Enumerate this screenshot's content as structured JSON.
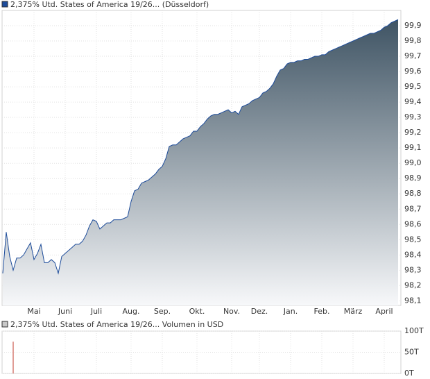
{
  "chart_data": [
    {
      "type": "area",
      "series": [
        {
          "name": "2,375% Utd. States of America 19/26... (Düsseldorf)",
          "color": "#1c4b9a",
          "values": [
            98.28,
            98.55,
            98.39,
            98.3,
            98.38,
            98.38,
            98.4,
            98.44,
            98.48,
            98.37,
            98.41,
            98.47,
            98.35,
            98.35,
            98.37,
            98.35,
            98.28,
            98.39,
            98.41,
            98.43,
            98.45,
            98.47,
            98.47,
            98.49,
            98.53,
            98.59,
            98.63,
            98.62,
            98.57,
            98.59,
            98.61,
            98.61,
            98.63,
            98.63,
            98.63,
            98.64,
            98.65,
            98.75,
            98.82,
            98.83,
            98.87,
            98.88,
            98.89,
            98.91,
            98.93,
            98.96,
            98.98,
            99.03,
            99.11,
            99.12,
            99.12,
            99.14,
            99.16,
            99.17,
            99.18,
            99.21,
            99.21,
            99.24,
            99.26,
            99.29,
            99.31,
            99.32,
            99.32,
            99.33,
            99.34,
            99.35,
            99.33,
            99.34,
            99.32,
            99.37,
            99.38,
            99.39,
            99.41,
            99.42,
            99.43,
            99.46,
            99.47,
            99.49,
            99.52,
            99.57,
            99.61,
            99.62,
            99.65,
            99.66,
            99.66,
            99.67,
            99.67,
            99.68,
            99.68,
            99.69,
            99.7,
            99.7,
            99.71,
            99.71,
            99.73,
            99.74,
            99.75,
            99.76,
            99.77,
            99.78,
            99.79,
            99.8,
            99.81,
            99.82,
            99.83,
            99.84,
            99.85,
            99.85,
            99.86,
            99.87,
            99.89,
            99.9,
            99.92,
            99.93,
            99.94
          ]
        }
      ],
      "categories": [
        null,
        null,
        null,
        null,
        null,
        null,
        null,
        null,
        null,
        "Mai",
        null,
        null,
        null,
        null,
        null,
        null,
        null,
        null,
        "Juni",
        null,
        null,
        null,
        null,
        null,
        null,
        null,
        null,
        "Juli",
        null,
        null,
        null,
        null,
        null,
        null,
        null,
        null,
        null,
        "Aug.",
        null,
        null,
        null,
        null,
        null,
        null,
        null,
        null,
        "Sep.",
        null,
        null,
        null,
        null,
        null,
        null,
        null,
        null,
        null,
        "Okt.",
        null,
        null,
        null,
        null,
        null,
        null,
        null,
        null,
        null,
        "Nov.",
        null,
        null,
        null,
        null,
        null,
        null,
        null,
        "Dez.",
        null,
        null,
        null,
        null,
        null,
        null,
        null,
        null,
        "Jan.",
        null,
        null,
        null,
        null,
        null,
        null,
        null,
        null,
        "Feb.",
        null,
        null,
        null,
        null,
        null,
        null,
        null,
        null,
        "März",
        null,
        null,
        null,
        null,
        null,
        null,
        null,
        null,
        "April",
        null,
        null,
        null,
        null
      ],
      "ylim": [
        98.07,
        100.0
      ],
      "yticks": [
        {
          "value": 98.1,
          "label": "98,1"
        },
        {
          "value": 98.2,
          "label": "98,2"
        },
        {
          "value": 98.3,
          "label": "98,3"
        },
        {
          "value": 98.4,
          "label": "98,4"
        },
        {
          "value": 98.5,
          "label": "98,5"
        },
        {
          "value": 98.6,
          "label": "98,6"
        },
        {
          "value": 98.7,
          "label": "98,7"
        },
        {
          "value": 98.8,
          "label": "98,8"
        },
        {
          "value": 98.9,
          "label": "98,9"
        },
        {
          "value": 99.0,
          "label": "99,0"
        },
        {
          "value": 99.1,
          "label": "99,1"
        },
        {
          "value": 99.2,
          "label": "99,2"
        },
        {
          "value": 99.3,
          "label": "99,3"
        },
        {
          "value": 99.4,
          "label": "99,4"
        },
        {
          "value": 99.5,
          "label": "99,5"
        },
        {
          "value": 99.6,
          "label": "99,6"
        },
        {
          "value": 99.7,
          "label": "99,7"
        },
        {
          "value": 99.8,
          "label": "99,8"
        },
        {
          "value": 99.9,
          "label": "99,9"
        }
      ],
      "grid": true
    },
    {
      "type": "bar",
      "series": [
        {
          "name": "2,375% Utd. States of America 19/26... Volumen in USD",
          "color": "#c0392b",
          "values": [
            null,
            null,
            null,
            75,
            null,
            null,
            null,
            null,
            null,
            null,
            null,
            null,
            null,
            null,
            null,
            null,
            null,
            null,
            null,
            null,
            null,
            null,
            null,
            null,
            null,
            null,
            null,
            null,
            null,
            null,
            null,
            null,
            null,
            null,
            null,
            null,
            null,
            null,
            null,
            null,
            null,
            null,
            null,
            null,
            null,
            null,
            null,
            null,
            null,
            null,
            null,
            null,
            null,
            null,
            null,
            null,
            null,
            null,
            null,
            null,
            null,
            null,
            null,
            null,
            null,
            null,
            null,
            null,
            null,
            null,
            null,
            null,
            null,
            null,
            null,
            null,
            null,
            null,
            null,
            null,
            null,
            null,
            null,
            null,
            null,
            null,
            null,
            null,
            null,
            null,
            null,
            null,
            null,
            null,
            null,
            null,
            null,
            null,
            null,
            null,
            null,
            null,
            null,
            null,
            null,
            null,
            null,
            null,
            null,
            null,
            null,
            null,
            null,
            null,
            null
          ]
        }
      ],
      "ylim": [
        0,
        100
      ],
      "yticks": [
        {
          "value": 0,
          "label": "0T"
        },
        {
          "value": 50,
          "label": "50T"
        },
        {
          "value": 100,
          "label": "100T"
        }
      ],
      "grid": true
    }
  ]
}
